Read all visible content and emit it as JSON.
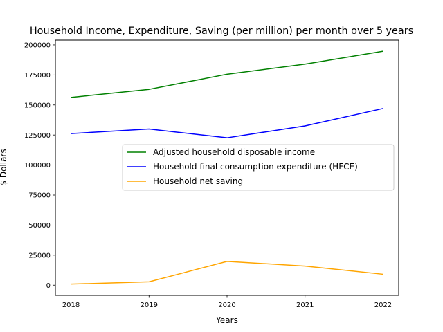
{
  "chart_data": {
    "type": "line",
    "title": "Household Income, Expenditure, Saving (per million) per month over 5 years",
    "xlabel": "Years",
    "ylabel": "$ Dollars",
    "x": [
      "2018",
      "2019",
      "2020",
      "2021",
      "2022"
    ],
    "xlim": [
      2017.8,
      2022.2
    ],
    "ylim": [
      -8500,
      204000
    ],
    "yticks": [
      0,
      25000,
      50000,
      75000,
      100000,
      125000,
      150000,
      175000,
      200000
    ],
    "ytick_labels": [
      "0",
      "25000",
      "50000",
      "75000",
      "100000",
      "125000",
      "150000",
      "175000",
      "200000"
    ],
    "grid": false,
    "legend_position": "center-right",
    "series": [
      {
        "name": "Adjusted household disposable income",
        "color": "#008000",
        "values": [
          156300,
          163000,
          175600,
          184000,
          194700
        ]
      },
      {
        "name": "Household final consumption expenditure (HFCE)",
        "color": "#0000ff",
        "values": [
          126200,
          130000,
          122700,
          132600,
          147100
        ]
      },
      {
        "name": "Household net saving",
        "color": "#ffa500",
        "values": [
          900,
          2800,
          19800,
          15900,
          9100
        ]
      }
    ]
  }
}
